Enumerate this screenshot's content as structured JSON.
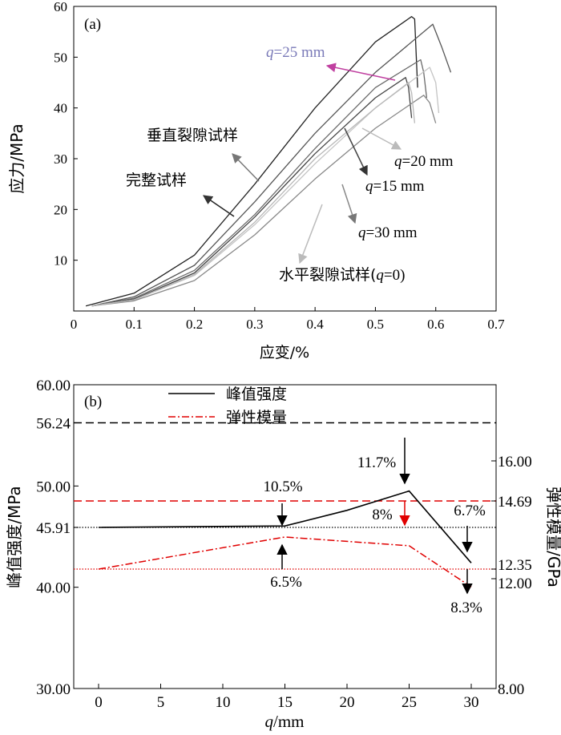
{
  "chart_data": [
    {
      "type": "line",
      "panel_label": "(a)",
      "xlabel": "应变/%",
      "ylabel": "应力/MPa",
      "xlim": [
        0,
        0.7
      ],
      "ylim": [
        0,
        60
      ],
      "x_ticks": [
        "0",
        "0.1",
        "0.2",
        "0.3",
        "0.4",
        "0.5",
        "0.6",
        "0.7"
      ],
      "y_ticks": [
        "10",
        "20",
        "30",
        "40",
        "50",
        "60"
      ],
      "series": [
        {
          "name": "完整试样",
          "color": "#222222",
          "x": [
            0.02,
            0.1,
            0.2,
            0.3,
            0.4,
            0.5,
            0.56,
            0.565,
            0.57
          ],
          "y": [
            1,
            3.5,
            11,
            25,
            40,
            53,
            58,
            57.5,
            44
          ]
        },
        {
          "name": "垂直裂隙试样",
          "color": "#555555",
          "x": [
            0.03,
            0.1,
            0.2,
            0.3,
            0.4,
            0.5,
            0.595,
            0.61,
            0.625
          ],
          "y": [
            1,
            2.8,
            9,
            21.5,
            35,
            47,
            56.5,
            52,
            47
          ]
        },
        {
          "name": "q=25 mm",
          "color": "#6a6a6a",
          "x": [
            0.03,
            0.1,
            0.2,
            0.3,
            0.4,
            0.5,
            0.575,
            0.58,
            0.585
          ],
          "y": [
            1,
            2.5,
            8,
            19,
            32,
            44,
            49.5,
            47,
            42
          ]
        },
        {
          "name": "q=15 mm",
          "color": "#444444",
          "x": [
            0.03,
            0.1,
            0.2,
            0.3,
            0.4,
            0.5,
            0.55,
            0.555,
            0.56
          ],
          "y": [
            1,
            2.3,
            7.5,
            18.5,
            31,
            42,
            46,
            44,
            38
          ]
        },
        {
          "name": "q=20 mm",
          "color": "#c4c4c4",
          "x": [
            0.03,
            0.1,
            0.2,
            0.3,
            0.4,
            0.5,
            0.59,
            0.6,
            0.605
          ],
          "y": [
            1,
            2.2,
            7,
            17,
            29,
            40,
            48,
            45,
            39
          ]
        },
        {
          "name": "q=30 mm",
          "color": "#888888",
          "x": [
            0.03,
            0.1,
            0.2,
            0.3,
            0.4,
            0.5,
            0.58,
            0.59,
            0.6
          ],
          "y": [
            1,
            2,
            6,
            15,
            26,
            36,
            42.5,
            41,
            37
          ]
        },
        {
          "name": "水平裂隙试样(q=0)",
          "color": "#b8b8b8",
          "x": [
            0.03,
            0.1,
            0.2,
            0.3,
            0.4,
            0.5,
            0.555,
            0.56,
            0.565
          ],
          "y": [
            1,
            2.2,
            7.2,
            17.5,
            30,
            40,
            45,
            43,
            37
          ]
        }
      ],
      "annotations": [
        {
          "text_pre": "q",
          "text_post": "=25 mm",
          "color": "#7a7ab8"
        },
        {
          "text_pre": "",
          "text_post": "垂直裂隙试样"
        },
        {
          "text_pre": "",
          "text_post": "完整试样"
        },
        {
          "text_pre": "q",
          "text_post": "=20 mm"
        },
        {
          "text_pre": "q",
          "text_post": "=15 mm"
        },
        {
          "text_pre": "q",
          "text_post": "=30 mm"
        },
        {
          "text_pre": "水平裂隙试样(",
          "italic": "q",
          "text_post": "=0)"
        }
      ]
    },
    {
      "type": "line",
      "panel_label": "(b)",
      "xlabel_italic": "q",
      "xlabel": "/mm",
      "ylabel_left": "峰值强度/MPa",
      "ylabel_right": "弹性模量/GPa",
      "xlim": [
        -2,
        32
      ],
      "x_ticks": [
        "0",
        "5",
        "10",
        "15",
        "20",
        "25",
        "30"
      ],
      "y_left_ticks": [
        "30.00",
        "40.00",
        "45.91",
        "50.00",
        "56.24",
        "60.00"
      ],
      "y_right_ticks": [
        "8.00",
        "12.00",
        "12.35",
        "14.69",
        "16.00"
      ],
      "legend": [
        {
          "name": "峰值强度",
          "color": "#000000",
          "style": "solid"
        },
        {
          "name": "弹性模量",
          "color": "#e00000",
          "style": "dashdot"
        }
      ],
      "series": [
        {
          "name": "峰值强度",
          "x": [
            0,
            15,
            20,
            25,
            30
          ],
          "y": [
            45.91,
            46.05,
            47.6,
            49.5,
            42.4
          ]
        },
        {
          "name": "弹性模量",
          "x": [
            0,
            15,
            25,
            30
          ],
          "y": [
            12.35,
            13.45,
            13.15,
            11.7
          ]
        }
      ],
      "reference_lines": [
        {
          "value": 56.24,
          "axis": "left",
          "color": "#000000",
          "style": "dashed"
        },
        {
          "value": 45.91,
          "axis": "left",
          "color": "#000000",
          "style": "dotted"
        },
        {
          "value": 14.69,
          "axis": "right",
          "color": "#e00000",
          "style": "dashed"
        },
        {
          "value": 12.35,
          "axis": "right",
          "color": "#e00000",
          "style": "dotted"
        }
      ],
      "annotations": [
        "10.5%",
        "11.7%",
        "8%",
        "6.7%",
        "6.5%",
        "8.3%"
      ]
    }
  ]
}
